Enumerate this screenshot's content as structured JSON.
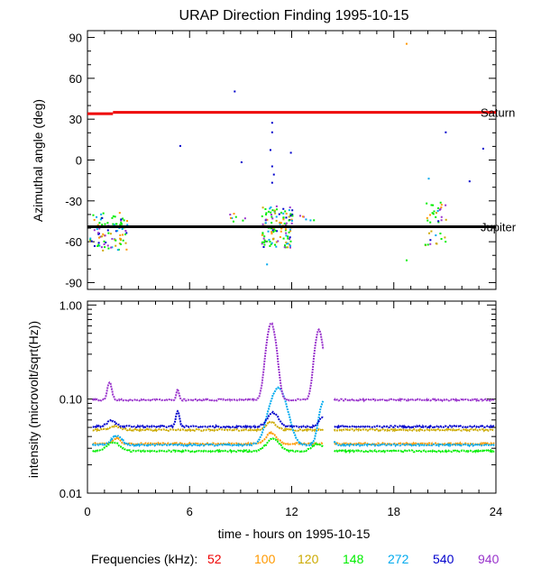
{
  "title": "URAP Direction Finding  1995-10-15",
  "chart_data": [
    {
      "type": "scatter",
      "panel": "direction",
      "ylabel": "Azimuthal angle (deg)",
      "xlim": [
        0,
        24
      ],
      "ylim": [
        -95,
        95
      ],
      "y_ticks": [
        90,
        60,
        30,
        0,
        -30,
        -60,
        -90
      ],
      "y_tick_labels": [
        "90",
        "60",
        "30",
        "0",
        "-30",
        "-60",
        "-90"
      ],
      "reference_lines": [
        {
          "name": "Saturn",
          "label": "Saturn",
          "y": 35,
          "color": "#ee0000",
          "segments": [
            [
              0,
              1.5,
              34
            ],
            [
              1.5,
              24,
              35
            ]
          ]
        },
        {
          "name": "Jupiter",
          "label": "Jupiter",
          "y": -49,
          "color": "#000000",
          "segments": [
            [
              0,
              24,
              -49
            ]
          ]
        }
      ],
      "scatter_points": [
        {
          "x": 8.6,
          "y": 51,
          "color": "#0000cc"
        },
        {
          "x": 5.4,
          "y": 11,
          "color": "#0000cc"
        },
        {
          "x": 9.0,
          "y": -1,
          "color": "#0000cc"
        },
        {
          "x": 10.8,
          "y": 28,
          "color": "#0000cc"
        },
        {
          "x": 10.8,
          "y": 21,
          "color": "#0000cc"
        },
        {
          "x": 10.7,
          "y": 8,
          "color": "#0000cc"
        },
        {
          "x": 11.9,
          "y": 6,
          "color": "#0000cc"
        },
        {
          "x": 10.8,
          "y": -4,
          "color": "#0000cc"
        },
        {
          "x": 10.9,
          "y": -10,
          "color": "#0000cc"
        },
        {
          "x": 10.8,
          "y": -16,
          "color": "#0000cc"
        },
        {
          "x": 18.7,
          "y": 86,
          "color": "#ff9900"
        },
        {
          "x": 21.0,
          "y": 21,
          "color": "#0000cc"
        },
        {
          "x": 22.4,
          "y": -15,
          "color": "#0000cc"
        },
        {
          "x": 23.2,
          "y": 9,
          "color": "#0000cc"
        },
        {
          "x": 20.0,
          "y": -13,
          "color": "#00aaee"
        },
        {
          "x": 10.5,
          "y": -76,
          "color": "#00aaee"
        },
        {
          "x": 18.7,
          "y": -73,
          "color": "#00ee00"
        }
      ],
      "clusters": [
        {
          "x_range": [
            0.1,
            2.3
          ],
          "y_range": [
            -66,
            -38
          ],
          "count": 95
        },
        {
          "x_range": [
            10.2,
            12.0
          ],
          "y_range": [
            -64,
            -33
          ],
          "count": 130
        },
        {
          "x_range": [
            19.8,
            21.1
          ],
          "y_range": [
            -62,
            -27
          ],
          "count": 40
        },
        {
          "x_range": [
            8.2,
            9.4
          ],
          "y_range": [
            -45,
            -38
          ],
          "count": 8
        },
        {
          "x_range": [
            12.4,
            13.4
          ],
          "y_range": [
            -45,
            -38
          ],
          "count": 6
        }
      ]
    },
    {
      "type": "line",
      "panel": "intensity",
      "ylabel": "intensity (microvolt/sqrt(Hz))",
      "xlabel": "time - hours on 1995-10-15",
      "xlim": [
        0,
        24
      ],
      "x_ticks": [
        0,
        6,
        12,
        18,
        24
      ],
      "x_tick_labels": [
        "0",
        "6",
        "12",
        "18",
        "24"
      ],
      "y_scale": "log",
      "ylim": [
        0.01,
        1.1
      ],
      "y_ticks": [
        1.0,
        0.1,
        0.01
      ],
      "y_tick_labels": [
        "1.00",
        "0.10",
        "0.01"
      ],
      "gap_hours": [
        13.9,
        14.5
      ],
      "series": [
        {
          "name": "52",
          "color": "#ee0000",
          "base": 0.05,
          "bumps": []
        },
        {
          "name": "100",
          "color": "#ff9900",
          "base": 0.0335,
          "bumps": [
            [
              1.7,
              0.2,
              1.15
            ],
            [
              10.8,
              0.3,
              1.3
            ]
          ]
        },
        {
          "name": "120",
          "color": "#ccaa00",
          "base": 0.047,
          "bumps": [
            [
              1.6,
              0.3,
              1.1
            ],
            [
              10.8,
              0.3,
              1.2
            ]
          ]
        },
        {
          "name": "148",
          "color": "#00ee00",
          "base": 0.028,
          "bumps": [
            [
              1.5,
              0.35,
              1.25
            ],
            [
              10.9,
              0.35,
              1.35
            ],
            [
              13.5,
              0.3,
              1.2
            ]
          ]
        },
        {
          "name": "272",
          "color": "#00aaee",
          "base": 0.0325,
          "bumps": [
            [
              1.7,
              0.3,
              1.25
            ],
            [
              11.2,
              0.45,
              4.0
            ],
            [
              13.9,
              0.25,
              3.0
            ]
          ]
        },
        {
          "name": "540",
          "color": "#0000cc",
          "base": 0.051,
          "bumps": [
            [
              1.4,
              0.25,
              1.15
            ],
            [
              5.3,
              0.1,
              1.45
            ],
            [
              10.9,
              0.3,
              1.4
            ],
            [
              13.8,
              0.2,
              1.25
            ]
          ]
        },
        {
          "name": "940",
          "color": "#9933cc",
          "base": 0.098,
          "bumps": [
            [
              1.3,
              0.12,
              1.55
            ],
            [
              5.3,
              0.07,
              1.3
            ],
            [
              10.8,
              0.25,
              6.5
            ],
            [
              13.6,
              0.22,
              5.5
            ]
          ]
        }
      ]
    }
  ],
  "frequencies": {
    "label": "Frequencies (kHz):",
    "items": [
      {
        "value": "52",
        "color": "#ee0000"
      },
      {
        "value": "100",
        "color": "#ff9900"
      },
      {
        "value": "120",
        "color": "#ccaa00"
      },
      {
        "value": "148",
        "color": "#00ee00"
      },
      {
        "value": "272",
        "color": "#00aaee"
      },
      {
        "value": "540",
        "color": "#0000cc"
      },
      {
        "value": "940",
        "color": "#9933cc"
      }
    ]
  }
}
